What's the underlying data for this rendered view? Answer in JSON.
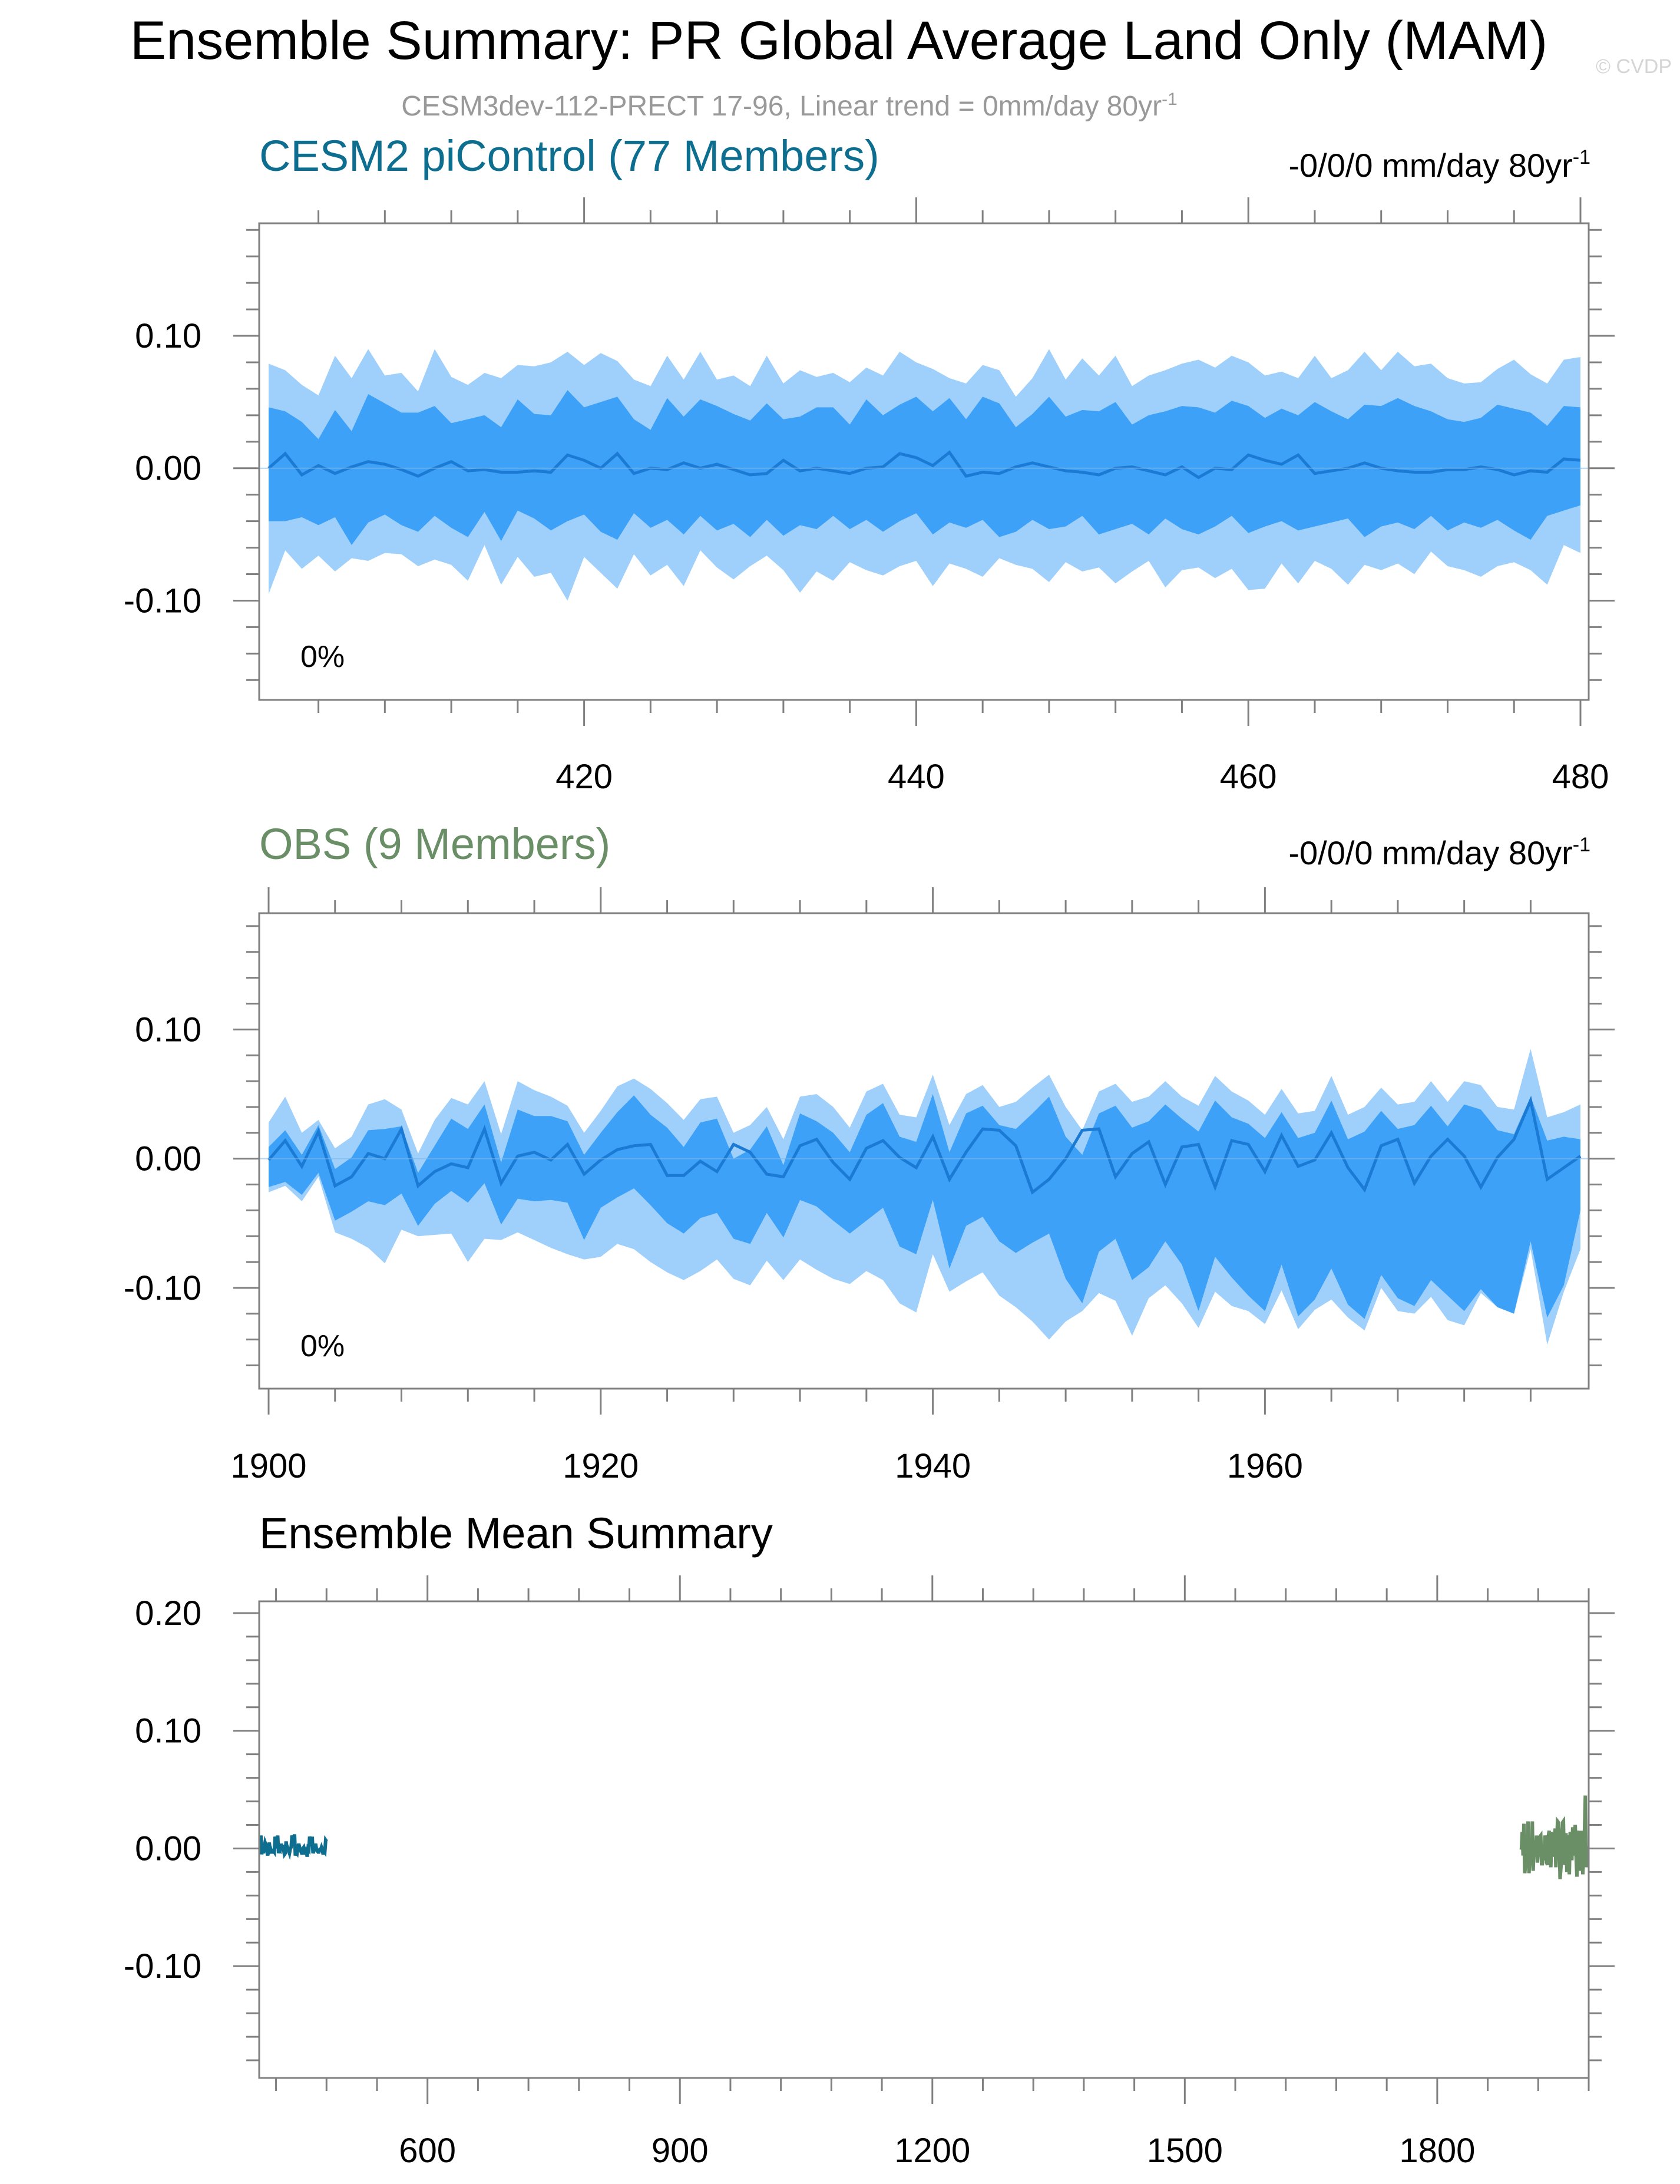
{
  "title": "Ensemble Summary: PR Global Average Land Only (MAM)",
  "subtitle": "CESM3dev-112-PRECT 17-96, Linear trend = 0mm/day 80yr",
  "subtitle_sup": "-1",
  "watermark": "© CVDP",
  "colors": {
    "model_title": "#0d6e8f",
    "obs_title": "#6a8f67",
    "band_outer": "#9fd0fb",
    "band_inner": "#3ea1f8",
    "mean_line": "#1b7ad4",
    "model_mean": "#0d6e8f",
    "obs_mean": "#6a8f67",
    "axis": "#808080",
    "text": "#000000",
    "subtitle": "#999999"
  },
  "chart_data": [
    {
      "type": "area",
      "panel_title": "CESM2 piControl (77 Members)",
      "trend_label": "-0/0/0 mm/day 80yr",
      "trend_sup": "-1",
      "percent_label": "0%",
      "x_start": 401,
      "x_step": 1,
      "xlim": [
        401,
        480
      ],
      "ylim": [
        -0.175,
        0.185
      ],
      "yticks": [
        0.1,
        0.0,
        -0.1
      ],
      "ytick_labels": [
        "0.10",
        "0.00",
        "-0.10"
      ],
      "xticks": [
        420,
        440,
        460,
        480
      ],
      "xtick_labels": [
        "420",
        "440",
        "460",
        "480"
      ],
      "grid": false,
      "series": [
        {
          "name": "",
          "role": "outer_upper",
          "values": [
            0.079,
            0.074,
            0.063,
            0.055,
            0.085,
            0.068,
            0.09,
            0.07,
            0.072,
            0.058,
            0.09,
            0.069,
            0.063,
            0.072,
            0.068,
            0.078,
            0.077,
            0.08,
            0.088,
            0.078,
            0.087,
            0.081,
            0.067,
            0.062,
            0.085,
            0.067,
            0.088,
            0.067,
            0.07,
            0.062,
            0.085,
            0.064,
            0.074,
            0.069,
            0.072,
            0.065,
            0.076,
            0.07,
            0.088,
            0.08,
            0.075,
            0.068,
            0.064,
            0.078,
            0.074,
            0.054,
            0.068,
            0.09,
            0.067,
            0.083,
            0.07,
            0.085,
            0.062,
            0.07,
            0.074,
            0.079,
            0.082,
            0.076,
            0.085,
            0.08,
            0.07,
            0.073,
            0.068,
            0.085,
            0.068,
            0.074,
            0.088,
            0.074,
            0.088,
            0.077,
            0.079,
            0.068,
            0.064,
            0.065,
            0.075,
            0.082,
            0.071,
            0.064,
            0.082,
            0.084
          ]
        },
        {
          "name": "",
          "role": "inner_upper",
          "values": [
            0.046,
            0.043,
            0.035,
            0.022,
            0.044,
            0.028,
            0.056,
            0.049,
            0.042,
            0.042,
            0.047,
            0.034,
            0.037,
            0.04,
            0.031,
            0.052,
            0.041,
            0.04,
            0.059,
            0.046,
            0.05,
            0.054,
            0.037,
            0.029,
            0.053,
            0.039,
            0.052,
            0.047,
            0.041,
            0.036,
            0.049,
            0.037,
            0.039,
            0.046,
            0.046,
            0.033,
            0.052,
            0.04,
            0.048,
            0.054,
            0.043,
            0.053,
            0.037,
            0.054,
            0.049,
            0.031,
            0.041,
            0.054,
            0.039,
            0.044,
            0.043,
            0.05,
            0.033,
            0.04,
            0.043,
            0.047,
            0.046,
            0.042,
            0.051,
            0.047,
            0.038,
            0.045,
            0.04,
            0.05,
            0.043,
            0.037,
            0.048,
            0.047,
            0.053,
            0.047,
            0.043,
            0.037,
            0.035,
            0.038,
            0.048,
            0.045,
            0.042,
            0.032,
            0.047,
            0.046
          ]
        },
        {
          "name": "",
          "role": "inner_lower",
          "values": [
            -0.04,
            -0.04,
            -0.037,
            -0.043,
            -0.037,
            -0.058,
            -0.041,
            -0.035,
            -0.043,
            -0.048,
            -0.036,
            -0.045,
            -0.052,
            -0.033,
            -0.055,
            -0.032,
            -0.038,
            -0.047,
            -0.04,
            -0.035,
            -0.048,
            -0.054,
            -0.034,
            -0.045,
            -0.039,
            -0.05,
            -0.036,
            -0.047,
            -0.042,
            -0.052,
            -0.039,
            -0.051,
            -0.043,
            -0.046,
            -0.036,
            -0.046,
            -0.039,
            -0.048,
            -0.04,
            -0.034,
            -0.05,
            -0.041,
            -0.045,
            -0.039,
            -0.052,
            -0.048,
            -0.039,
            -0.046,
            -0.044,
            -0.036,
            -0.05,
            -0.046,
            -0.042,
            -0.05,
            -0.038,
            -0.046,
            -0.05,
            -0.044,
            -0.036,
            -0.049,
            -0.044,
            -0.04,
            -0.047,
            -0.044,
            -0.041,
            -0.038,
            -0.052,
            -0.044,
            -0.041,
            -0.046,
            -0.036,
            -0.047,
            -0.041,
            -0.045,
            -0.039,
            -0.047,
            -0.054,
            -0.036,
            -0.032,
            -0.028
          ]
        },
        {
          "name": "",
          "role": "outer_lower",
          "values": [
            -0.095,
            -0.062,
            -0.076,
            -0.066,
            -0.078,
            -0.068,
            -0.07,
            -0.064,
            -0.065,
            -0.074,
            -0.069,
            -0.073,
            -0.085,
            -0.058,
            -0.088,
            -0.067,
            -0.082,
            -0.079,
            -0.1,
            -0.067,
            -0.079,
            -0.091,
            -0.065,
            -0.081,
            -0.073,
            -0.089,
            -0.062,
            -0.075,
            -0.084,
            -0.074,
            -0.066,
            -0.077,
            -0.094,
            -0.078,
            -0.085,
            -0.071,
            -0.077,
            -0.081,
            -0.074,
            -0.07,
            -0.089,
            -0.072,
            -0.076,
            -0.082,
            -0.068,
            -0.073,
            -0.076,
            -0.086,
            -0.071,
            -0.078,
            -0.075,
            -0.087,
            -0.078,
            -0.07,
            -0.09,
            -0.077,
            -0.075,
            -0.083,
            -0.076,
            -0.092,
            -0.091,
            -0.072,
            -0.087,
            -0.07,
            -0.076,
            -0.088,
            -0.073,
            -0.077,
            -0.072,
            -0.08,
            -0.063,
            -0.074,
            -0.077,
            -0.082,
            -0.074,
            -0.071,
            -0.077,
            -0.088,
            -0.058,
            -0.064
          ]
        },
        {
          "name": "",
          "role": "mean",
          "values": [
            0.0,
            0.011,
            -0.005,
            0.002,
            -0.004,
            0.001,
            0.005,
            0.003,
            -0.001,
            -0.006,
            0.0,
            0.005,
            -0.002,
            -0.001,
            -0.003,
            -0.003,
            -0.002,
            -0.003,
            0.01,
            0.006,
            0.0,
            0.011,
            -0.004,
            0.0,
            -0.001,
            0.004,
            0.0,
            0.003,
            -0.001,
            -0.005,
            -0.004,
            0.006,
            -0.002,
            0.0,
            -0.002,
            -0.004,
            0.0,
            0.001,
            0.011,
            0.008,
            0.002,
            0.012,
            -0.006,
            -0.003,
            -0.004,
            0.001,
            0.004,
            0.001,
            -0.002,
            -0.003,
            -0.005,
            0.0,
            0.001,
            -0.002,
            -0.005,
            0.001,
            -0.007,
            0.0,
            -0.001,
            0.01,
            0.006,
            0.003,
            0.01,
            -0.004,
            -0.002,
            0.0,
            0.004,
            0.0,
            -0.002,
            -0.003,
            -0.003,
            -0.001,
            -0.001,
            0.001,
            -0.001,
            -0.005,
            -0.002,
            -0.003,
            0.007,
            0.006
          ]
        }
      ]
    },
    {
      "type": "area",
      "panel_title": "OBS (9 Members)",
      "trend_label": "-0/0/0 mm/day 80yr",
      "trend_sup": "-1",
      "percent_label": "0%",
      "x_start": 1900,
      "x_step": 1,
      "xlim": [
        1900,
        1979
      ],
      "ylim": [
        -0.178,
        0.19
      ],
      "yticks": [
        0.1,
        0.0,
        -0.1
      ],
      "ytick_labels": [
        "0.10",
        "0.00",
        "-0.10"
      ],
      "xticks": [
        1900,
        1920,
        1940,
        1960
      ],
      "xtick_labels": [
        "1900",
        "1920",
        "1940",
        "1960"
      ],
      "grid": false,
      "series": [
        {
          "name": "",
          "role": "outer_upper",
          "values": [
            0.028,
            0.048,
            0.02,
            0.03,
            0.008,
            0.017,
            0.042,
            0.046,
            0.038,
            0.004,
            0.03,
            0.047,
            0.042,
            0.06,
            0.019,
            0.06,
            0.053,
            0.048,
            0.041,
            0.02,
            0.037,
            0.056,
            0.062,
            0.054,
            0.043,
            0.03,
            0.046,
            0.048,
            0.02,
            0.026,
            0.04,
            0.015,
            0.048,
            0.05,
            0.04,
            0.024,
            0.052,
            0.058,
            0.034,
            0.032,
            0.065,
            0.026,
            0.05,
            0.057,
            0.04,
            0.044,
            0.055,
            0.065,
            0.04,
            0.022,
            0.052,
            0.058,
            0.044,
            0.048,
            0.06,
            0.048,
            0.041,
            0.064,
            0.052,
            0.045,
            0.034,
            0.054,
            0.035,
            0.037,
            0.064,
            0.034,
            0.04,
            0.055,
            0.042,
            0.044,
            0.06,
            0.044,
            0.06,
            0.057,
            0.04,
            0.038,
            0.085,
            0.032,
            0.036,
            0.042
          ]
        },
        {
          "name": "",
          "role": "inner_upper",
          "values": [
            0.009,
            0.022,
            0.003,
            0.026,
            -0.008,
            0.001,
            0.022,
            0.023,
            0.025,
            -0.011,
            0.01,
            0.031,
            0.023,
            0.042,
            -0.003,
            0.038,
            0.033,
            0.033,
            0.029,
            0.003,
            0.02,
            0.036,
            0.049,
            0.034,
            0.024,
            0.009,
            0.028,
            0.031,
            0.0,
            0.007,
            0.025,
            -0.005,
            0.035,
            0.029,
            0.02,
            0.005,
            0.034,
            0.043,
            0.017,
            0.013,
            0.05,
            0.005,
            0.035,
            0.041,
            0.026,
            0.023,
            0.035,
            0.048,
            0.017,
            0.003,
            0.035,
            0.041,
            0.024,
            0.029,
            0.042,
            0.031,
            0.021,
            0.045,
            0.032,
            0.027,
            0.016,
            0.036,
            0.016,
            0.02,
            0.045,
            0.015,
            0.021,
            0.037,
            0.023,
            0.026,
            0.041,
            0.025,
            0.042,
            0.038,
            0.022,
            0.019,
            0.048,
            0.014,
            0.017,
            0.015
          ]
        },
        {
          "name": "",
          "role": "inner_lower",
          "values": [
            -0.022,
            -0.018,
            -0.028,
            -0.011,
            -0.048,
            -0.041,
            -0.033,
            -0.036,
            -0.027,
            -0.052,
            -0.035,
            -0.025,
            -0.034,
            -0.019,
            -0.051,
            -0.031,
            -0.033,
            -0.032,
            -0.034,
            -0.063,
            -0.038,
            -0.03,
            -0.023,
            -0.036,
            -0.05,
            -0.058,
            -0.046,
            -0.042,
            -0.062,
            -0.066,
            -0.042,
            -0.061,
            -0.032,
            -0.037,
            -0.048,
            -0.058,
            -0.048,
            -0.038,
            -0.068,
            -0.074,
            -0.032,
            -0.085,
            -0.052,
            -0.045,
            -0.064,
            -0.073,
            -0.065,
            -0.058,
            -0.093,
            -0.112,
            -0.072,
            -0.062,
            -0.094,
            -0.084,
            -0.064,
            -0.082,
            -0.118,
            -0.076,
            -0.092,
            -0.106,
            -0.118,
            -0.082,
            -0.122,
            -0.109,
            -0.085,
            -0.113,
            -0.124,
            -0.09,
            -0.108,
            -0.114,
            -0.094,
            -0.106,
            -0.118,
            -0.101,
            -0.115,
            -0.12,
            -0.064,
            -0.123,
            -0.098,
            -0.04
          ]
        },
        {
          "name": "",
          "role": "outer_lower",
          "values": [
            -0.026,
            -0.021,
            -0.033,
            -0.014,
            -0.057,
            -0.062,
            -0.069,
            -0.081,
            -0.055,
            -0.06,
            -0.059,
            -0.058,
            -0.08,
            -0.062,
            -0.063,
            -0.057,
            -0.063,
            -0.069,
            -0.074,
            -0.078,
            -0.076,
            -0.066,
            -0.07,
            -0.08,
            -0.088,
            -0.094,
            -0.087,
            -0.078,
            -0.093,
            -0.098,
            -0.079,
            -0.094,
            -0.078,
            -0.086,
            -0.093,
            -0.097,
            -0.087,
            -0.094,
            -0.112,
            -0.119,
            -0.074,
            -0.103,
            -0.095,
            -0.088,
            -0.106,
            -0.115,
            -0.126,
            -0.14,
            -0.126,
            -0.118,
            -0.104,
            -0.11,
            -0.137,
            -0.108,
            -0.098,
            -0.112,
            -0.131,
            -0.103,
            -0.114,
            -0.118,
            -0.128,
            -0.102,
            -0.132,
            -0.117,
            -0.109,
            -0.123,
            -0.133,
            -0.1,
            -0.118,
            -0.12,
            -0.107,
            -0.125,
            -0.129,
            -0.104,
            -0.115,
            -0.12,
            -0.07,
            -0.144,
            -0.103,
            -0.07
          ]
        },
        {
          "name": "",
          "role": "mean",
          "values": [
            -0.001,
            0.014,
            -0.006,
            0.021,
            -0.021,
            -0.014,
            0.004,
            0.0,
            0.023,
            -0.021,
            -0.01,
            -0.004,
            -0.007,
            0.023,
            -0.019,
            0.002,
            0.005,
            -0.001,
            0.011,
            -0.012,
            -0.001,
            0.007,
            0.01,
            0.011,
            -0.013,
            -0.013,
            -0.002,
            -0.01,
            0.011,
            0.005,
            -0.012,
            -0.014,
            0.01,
            0.015,
            -0.003,
            -0.016,
            0.008,
            0.014,
            0.001,
            -0.007,
            0.017,
            -0.016,
            0.005,
            0.023,
            0.022,
            0.01,
            -0.026,
            -0.016,
            0.0,
            0.022,
            0.023,
            -0.014,
            0.004,
            0.013,
            -0.02,
            0.009,
            0.011,
            -0.022,
            0.014,
            0.011,
            -0.01,
            0.018,
            -0.006,
            -0.001,
            0.02,
            -0.007,
            -0.024,
            0.01,
            0.015,
            -0.019,
            0.002,
            0.015,
            0.002,
            -0.022,
            0.001,
            0.015,
            0.045,
            -0.016,
            -0.007,
            0.002
          ]
        }
      ]
    },
    {
      "type": "line",
      "panel_title": "Ensemble Mean Summary",
      "xlim": [
        400,
        1980
      ],
      "ylim": [
        -0.195,
        0.21
      ],
      "yticks": [
        0.2,
        0.1,
        0.0,
        -0.1
      ],
      "ytick_labels": [
        "0.20",
        "0.10",
        "0.00",
        "-0.10"
      ],
      "xticks": [
        600,
        900,
        1200,
        1500,
        1800
      ],
      "xtick_labels": [
        "600",
        "900",
        "1200",
        "1500",
        "1800"
      ],
      "grid": false,
      "series": [
        {
          "name": "",
          "role": "model_mean",
          "x_start": 401,
          "x_end": 480,
          "amplitude_note": "",
          "values_ref": "chart_data.0.series.4.values"
        },
        {
          "name": "",
          "role": "obs_mean",
          "x_start": 1900,
          "x_end": 1979,
          "values_ref": "chart_data.1.series.4.values"
        }
      ]
    }
  ]
}
